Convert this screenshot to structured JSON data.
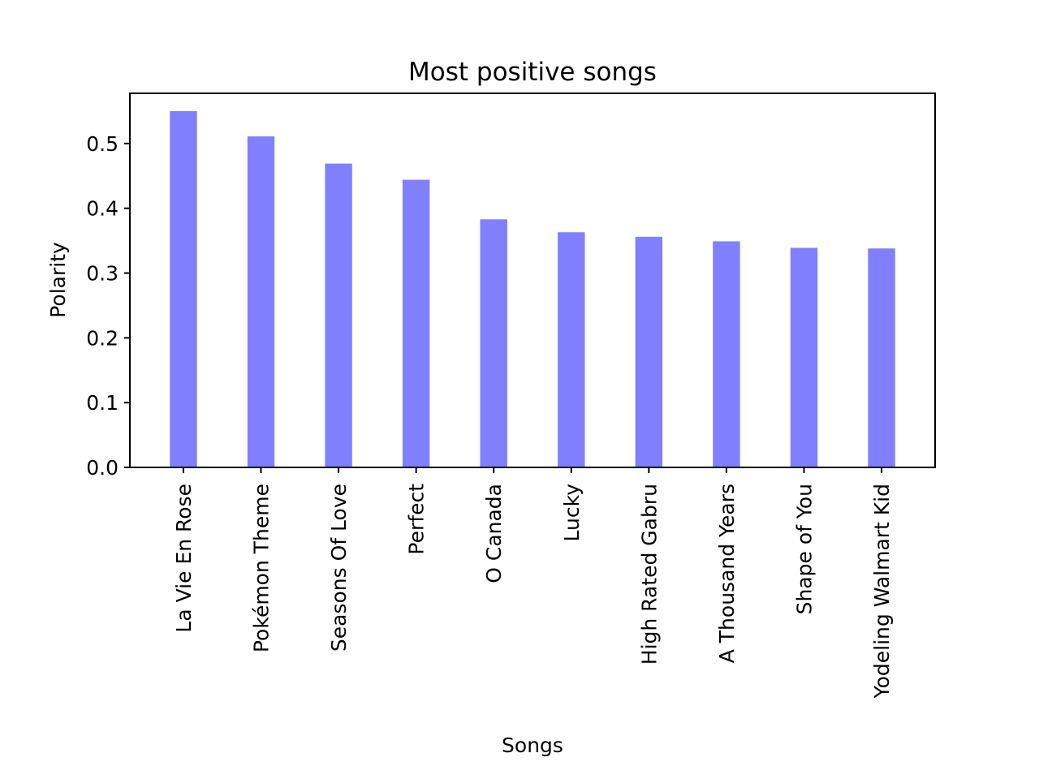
{
  "chart_data": {
    "type": "bar",
    "title": "Most positive songs",
    "xlabel": "Songs",
    "ylabel": "Polarity",
    "categories": [
      "La Vie En Rose",
      "Pokémon Theme",
      "Seasons Of Love",
      "Perfect",
      "O Canada",
      "Lucky",
      "High Rated Gabru",
      "A Thousand Years",
      "Shape of You",
      "Yodeling Walmart Kid"
    ],
    "values": [
      0.55,
      0.511,
      0.469,
      0.444,
      0.383,
      0.363,
      0.356,
      0.349,
      0.339,
      0.338
    ],
    "yticks": [
      "0.0",
      "0.1",
      "0.2",
      "0.3",
      "0.4",
      "0.5"
    ],
    "ylim": [
      0,
      0.5775
    ],
    "bar_color": "#8080ff",
    "grid": false,
    "legend": "none"
  }
}
